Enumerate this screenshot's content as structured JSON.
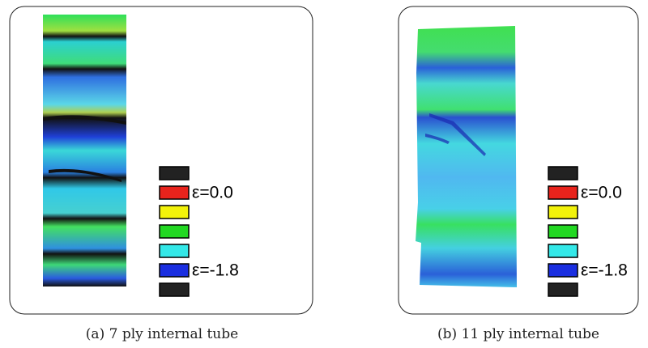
{
  "panels": [
    {
      "caption": "(a) 7 ply internal tube",
      "legend": [
        {
          "color": "#222222"
        },
        {
          "color": "#e8231c",
          "label": "ε=0.0"
        },
        {
          "color": "#f2f20a"
        },
        {
          "color": "#22d822"
        },
        {
          "color": "#33e8e8"
        },
        {
          "color": "#1a2ee0",
          "label": "ε=-1.8"
        },
        {
          "color": "#222222"
        }
      ]
    },
    {
      "caption": "(b) 11 ply internal tube",
      "legend": [
        {
          "color": "#222222"
        },
        {
          "color": "#e8231c",
          "label": "ε=0.0"
        },
        {
          "color": "#f2f20a"
        },
        {
          "color": "#22d822"
        },
        {
          "color": "#33e8e8"
        },
        {
          "color": "#1a2ee0",
          "label": "ε=-1.8"
        },
        {
          "color": "#222222"
        }
      ]
    }
  ]
}
